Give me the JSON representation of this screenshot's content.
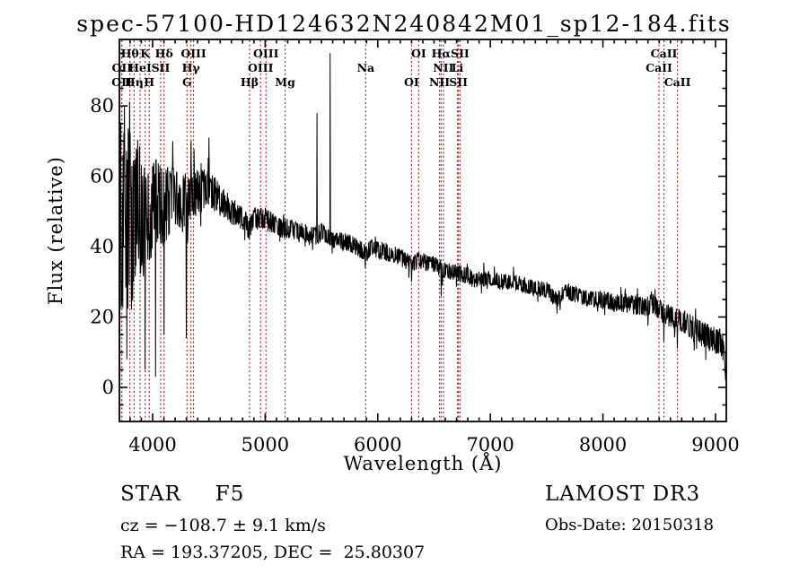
{
  "title": "spec-57100-HD124632N240842M01_sp12-184.fits",
  "footer": {
    "classification": "STAR",
    "subclass": "F5",
    "survey": "LAMOST DR3",
    "cz": "cz = −108.7 ± 9.1 km/s",
    "obs_date": "Obs-Date: 20150318",
    "ra_dec": "RA = 193.37205, DEC =  25.80307"
  },
  "chart_data": {
    "type": "line",
    "title": "spec-57100-HD124632N240842M01_sp12-184.fits",
    "xlabel": "Wavelength (Å)",
    "ylabel": "Flux (relative)",
    "xlim": [
      3705,
      9096
    ],
    "ylim": [
      -9.7,
      98.9
    ],
    "x_major_ticks": [
      4000,
      5000,
      6000,
      7000,
      8000,
      9000
    ],
    "x_tick_labels": [
      "4000",
      "5000",
      "6000",
      "7000",
      "8000",
      "9000"
    ],
    "x_minor_step": 100,
    "y_major_ticks": [
      0,
      20,
      40,
      60,
      80
    ],
    "y_tick_labels": [
      "0",
      "20",
      "40",
      "60",
      "80"
    ],
    "y_minor_step": 5,
    "grid": false,
    "line_color": "#000000",
    "marker_color": "#A52A2A",
    "background": "#ffffff",
    "noise_seed": 20150318,
    "sample_step": 3,
    "spectral_lines": [
      {
        "label": "Hθ",
        "wavelength": 3798.0,
        "row": 0
      },
      {
        "label": "K",
        "wavelength": 3933.7,
        "row": 0
      },
      {
        "label": "Hδ",
        "wavelength": 4101.7,
        "row": 0
      },
      {
        "label": "OIII",
        "wavelength": 4363.2,
        "row": 0
      },
      {
        "label": "OIII",
        "wavelength": 5006.8,
        "row": 0
      },
      {
        "label": "OI",
        "wavelength": 6363.8,
        "row": 0
      },
      {
        "label": "Hα",
        "wavelength": 6562.8,
        "row": 0
      },
      {
        "label": "SII",
        "wavelength": 6730.8,
        "row": 0
      },
      {
        "label": "CaII",
        "wavelength": 8542.1,
        "row": 0
      },
      {
        "label": "OII",
        "wavelength": 3727.1,
        "row": 1
      },
      {
        "label": "HeI",
        "wavelength": 3889.0,
        "row": 1
      },
      {
        "label": "SII",
        "wavelength": 4071.7,
        "row": 1
      },
      {
        "label": "Hγ",
        "wavelength": 4340.5,
        "row": 1
      },
      {
        "label": "OIII",
        "wavelength": 4958.9,
        "row": 1
      },
      {
        "label": "Na",
        "wavelength": 5893.0,
        "row": 1
      },
      {
        "label": "NII",
        "wavelength": 6583.5,
        "row": 1
      },
      {
        "label": "Li",
        "wavelength": 6707.9,
        "row": 1
      },
      {
        "label": "CaII",
        "wavelength": 8498.0,
        "row": 1
      },
      {
        "label": "OII",
        "wavelength": 3725.0,
        "row": 2
      },
      {
        "label": "Hη",
        "wavelength": 3835.4,
        "row": 2
      },
      {
        "label": "H",
        "wavelength": 3969.6,
        "row": 2
      },
      {
        "label": "G",
        "wavelength": 4305.6,
        "row": 2
      },
      {
        "label": "Hβ",
        "wavelength": 4861.3,
        "row": 2
      },
      {
        "label": "Mg",
        "wavelength": 5176.7,
        "row": 2
      },
      {
        "label": "OI",
        "wavelength": 6300.2,
        "row": 2
      },
      {
        "label": "NII",
        "wavelength": 6548.1,
        "row": 2
      },
      {
        "label": "SII",
        "wavelength": 6716.4,
        "row": 2
      },
      {
        "label": "CaII",
        "wavelength": 8662.1,
        "row": 2
      }
    ],
    "continuum": [
      [
        3705,
        20
      ],
      [
        3715,
        55
      ],
      [
        3725,
        45
      ],
      [
        3740,
        52
      ],
      [
        3760,
        50
      ],
      [
        3780,
        48
      ],
      [
        3800,
        51
      ],
      [
        3830,
        49
      ],
      [
        3860,
        52
      ],
      [
        3890,
        50
      ],
      [
        3920,
        48
      ],
      [
        3950,
        51
      ],
      [
        3980,
        50
      ],
      [
        4010,
        52
      ],
      [
        4050,
        53
      ],
      [
        4100,
        51
      ],
      [
        4150,
        53
      ],
      [
        4200,
        53
      ],
      [
        4250,
        54
      ],
      [
        4300,
        53
      ],
      [
        4350,
        56
      ],
      [
        4400,
        55
      ],
      [
        4450,
        56
      ],
      [
        4500,
        57
      ],
      [
        4550,
        55
      ],
      [
        4600,
        53
      ],
      [
        4650,
        52
      ],
      [
        4700,
        50
      ],
      [
        4750,
        49
      ],
      [
        4800,
        48
      ],
      [
        4861,
        45
      ],
      [
        4900,
        48
      ],
      [
        4950,
        48
      ],
      [
        5000,
        48
      ],
      [
        5050,
        47
      ],
      [
        5100,
        46
      ],
      [
        5175,
        45
      ],
      [
        5250,
        45
      ],
      [
        5300,
        44
      ],
      [
        5350,
        44
      ],
      [
        5400,
        43
      ],
      [
        5450,
        43
      ],
      [
        5500,
        44
      ],
      [
        5550,
        43
      ],
      [
        5600,
        42
      ],
      [
        5650,
        42
      ],
      [
        5700,
        41
      ],
      [
        5750,
        41
      ],
      [
        5800,
        40
      ],
      [
        5850,
        39
      ],
      [
        5894,
        38
      ],
      [
        5950,
        40
      ],
      [
        6000,
        39
      ],
      [
        6050,
        39
      ],
      [
        6100,
        38
      ],
      [
        6150,
        38
      ],
      [
        6200,
        37
      ],
      [
        6250,
        36
      ],
      [
        6300,
        35
      ],
      [
        6350,
        36
      ],
      [
        6400,
        36
      ],
      [
        6450,
        35
      ],
      [
        6500,
        35
      ],
      [
        6550,
        34
      ],
      [
        6600,
        33
      ],
      [
        6650,
        33
      ],
      [
        6700,
        33
      ],
      [
        6750,
        32
      ],
      [
        6800,
        32
      ],
      [
        6867,
        30
      ],
      [
        6900,
        31
      ],
      [
        6950,
        31
      ],
      [
        7000,
        31
      ],
      [
        7100,
        30
      ],
      [
        7200,
        30
      ],
      [
        7300,
        29
      ],
      [
        7400,
        28
      ],
      [
        7500,
        28
      ],
      [
        7550,
        26
      ],
      [
        7600,
        25
      ],
      [
        7650,
        27
      ],
      [
        7700,
        27
      ],
      [
        7800,
        26
      ],
      [
        7900,
        25
      ],
      [
        8000,
        25
      ],
      [
        8100,
        24
      ],
      [
        8200,
        24
      ],
      [
        8300,
        23
      ],
      [
        8400,
        23
      ],
      [
        8450,
        24
      ],
      [
        8500,
        22
      ],
      [
        8550,
        21
      ],
      [
        8600,
        20
      ],
      [
        8662,
        19
      ],
      [
        8700,
        19
      ],
      [
        8750,
        18
      ],
      [
        8800,
        17
      ],
      [
        8850,
        16
      ],
      [
        8900,
        15
      ],
      [
        8950,
        14
      ],
      [
        9000,
        13
      ],
      [
        9040,
        13
      ],
      [
        9070,
        11
      ],
      [
        9085,
        6
      ],
      [
        9096,
        2
      ]
    ],
    "noise_amplitude": [
      [
        3705,
        30
      ],
      [
        3780,
        26
      ],
      [
        3850,
        20
      ],
      [
        3950,
        15
      ],
      [
        4050,
        12
      ],
      [
        4150,
        10
      ],
      [
        4300,
        8
      ],
      [
        4450,
        6
      ],
      [
        4600,
        4.5
      ],
      [
        4750,
        3.5
      ],
      [
        5000,
        3
      ],
      [
        5300,
        2.8
      ],
      [
        5700,
        2.6
      ],
      [
        6200,
        2.5
      ],
      [
        6700,
        2.4
      ],
      [
        7200,
        2.3
      ],
      [
        7800,
        2.3
      ],
      [
        8300,
        2.8
      ],
      [
        8600,
        3.2
      ],
      [
        8900,
        3.8
      ],
      [
        9096,
        4
      ]
    ],
    "features": [
      {
        "wavelength": 3706,
        "flux": 0
      },
      {
        "wavelength": 3750,
        "flux": 80
      },
      {
        "wavelength": 3770,
        "flux": 8
      },
      {
        "wavelength": 3934,
        "flux": 5
      },
      {
        "wavelength": 4026,
        "flux": 3
      },
      {
        "wavelength": 4101,
        "flux": 15
      },
      {
        "wavelength": 4180,
        "flux": 70
      },
      {
        "wavelength": 4300,
        "flux": 14
      },
      {
        "wavelength": 4341,
        "flux": 70
      },
      {
        "wavelength": 4500,
        "flux": 71
      },
      {
        "wavelength": 5461,
        "flux": 78
      },
      {
        "wavelength": 5577,
        "flux": 95
      },
      {
        "wavelength": 5890,
        "flux": 34
      },
      {
        "wavelength": 6300,
        "flux": 30
      },
      {
        "wavelength": 6563,
        "flux": 26
      },
      {
        "wavelength": 7593,
        "flux": 21
      },
      {
        "wavelength": 7620,
        "flux": 22
      },
      {
        "wavelength": 8542,
        "flux": 13
      },
      {
        "wavelength": 8662,
        "flux": 11
      },
      {
        "wavelength": 9090,
        "flux": 2
      }
    ]
  }
}
